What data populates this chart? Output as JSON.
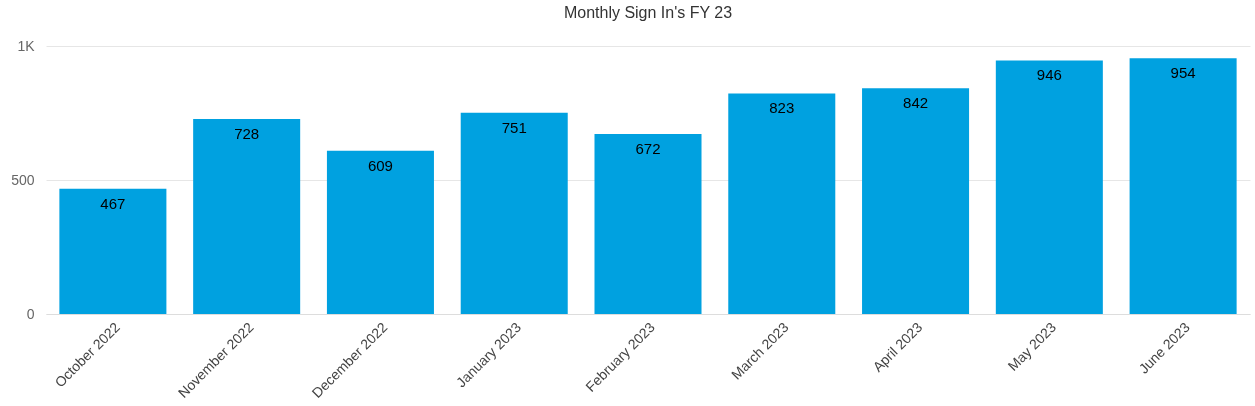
{
  "chart_data": {
    "type": "bar",
    "title": "Monthly Sign In's FY 23",
    "categories": [
      "October 2022",
      "November 2022",
      "December 2022",
      "January 2023",
      "February 2023",
      "March 2023",
      "April 2023",
      "May 2023",
      "June 2023"
    ],
    "values": [
      467,
      728,
      609,
      751,
      672,
      823,
      842,
      946,
      954
    ],
    "color": "#00a1e0",
    "ylim": [
      0,
      1000
    ],
    "yticks": [
      0,
      500,
      {
        "value": 1000,
        "label": "1K"
      }
    ],
    "grid": "y",
    "data_labels": true
  }
}
